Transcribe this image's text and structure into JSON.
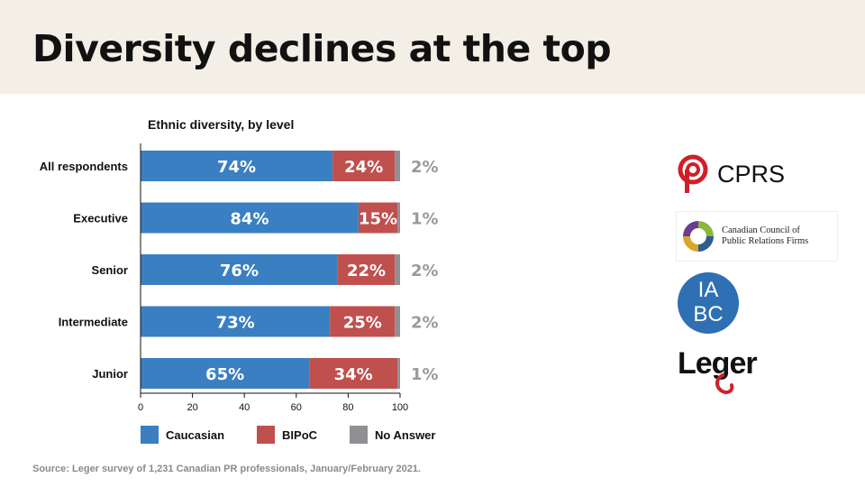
{
  "header": {
    "title": "Diversity declines at the top"
  },
  "chart_data": {
    "type": "bar",
    "orientation": "horizontal",
    "stacked": true,
    "title": "Ethnic diversity, by level",
    "categories": [
      "All respondents",
      "Executive",
      "Senior",
      "Intermediate",
      "Junior"
    ],
    "series": [
      {
        "name": "Caucasian",
        "values": [
          74,
          84,
          76,
          73,
          65
        ],
        "color": "#3a7fc1"
      },
      {
        "name": "BIPoC",
        "values": [
          24,
          15,
          22,
          25,
          34
        ],
        "color": "#c0504d"
      },
      {
        "name": "No Answer",
        "values": [
          2,
          1,
          2,
          2,
          1
        ],
        "color": "#8f8f94"
      }
    ],
    "xlim": [
      0,
      100
    ],
    "xticks": [
      0,
      20,
      40,
      60,
      80,
      100
    ],
    "value_format": "{v}%",
    "grid": false,
    "legend_position": "bottom"
  },
  "legend": {
    "caucasian": "Caucasian",
    "bipoc": "BIPoC",
    "no_answer": "No Answer"
  },
  "source": "Source: Leger survey of 1,231 Canadian PR professionals, January/February 2021.",
  "logos": {
    "cprs": "CPRS",
    "cccprf_line1": "Canadian Council of",
    "cccprf_line2": "Public Relations Firms",
    "iabc_line1": "IA",
    "iabc_line2": "BC",
    "leger": "Leger"
  },
  "colors": {
    "header_bg": "#f4efe6",
    "cprs_red": "#d01f2a",
    "iabc_blue": "#2f6fb3"
  }
}
